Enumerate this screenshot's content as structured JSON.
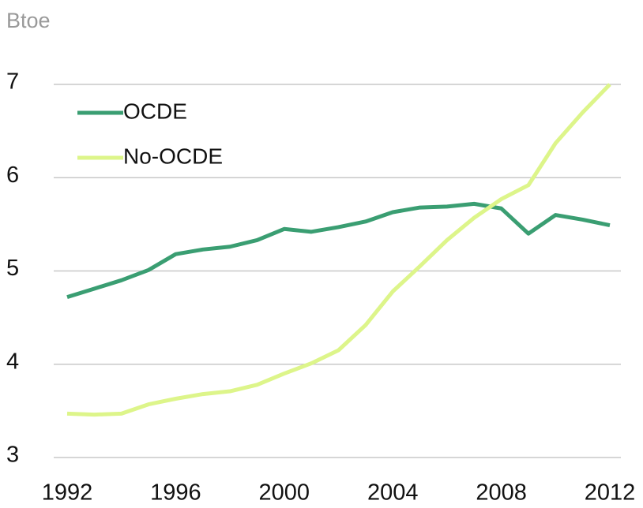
{
  "chart_data": {
    "type": "line",
    "y_label": "Btoe",
    "x": [
      1992,
      1993,
      1994,
      1995,
      1996,
      1997,
      1998,
      1999,
      2000,
      2001,
      2002,
      2003,
      2004,
      2005,
      2006,
      2007,
      2008,
      2009,
      2010,
      2011,
      2012
    ],
    "series": [
      {
        "name": "OCDE",
        "color": "#3a9e72",
        "values": [
          4.72,
          4.81,
          4.9,
          5.01,
          5.18,
          5.23,
          5.26,
          5.33,
          5.45,
          5.42,
          5.47,
          5.53,
          5.63,
          5.68,
          5.69,
          5.72,
          5.67,
          5.4,
          5.6,
          5.55,
          5.49
        ]
      },
      {
        "name": "No-OCDE",
        "color": "#ddf58a",
        "values": [
          3.47,
          3.46,
          3.47,
          3.57,
          3.63,
          3.68,
          3.71,
          3.78,
          3.9,
          4.01,
          4.15,
          4.42,
          4.78,
          5.05,
          5.33,
          5.57,
          5.77,
          5.92,
          6.37,
          6.7,
          7.0
        ]
      }
    ],
    "xlim": [
      1992,
      2012
    ],
    "xticks": [
      1992,
      1996,
      2000,
      2004,
      2008,
      2012
    ],
    "ylim": [
      3,
      7
    ],
    "yticks": [
      3,
      4,
      5,
      6,
      7
    ],
    "grid": true,
    "legend": "upper left"
  }
}
